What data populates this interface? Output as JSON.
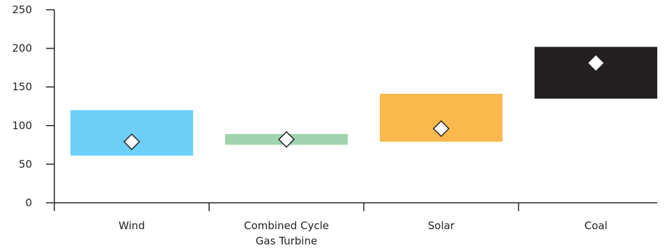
{
  "chart_data": {
    "type": "bar",
    "subtype": "floating-range-with-marker",
    "title": "",
    "xlabel": "",
    "ylabel": "",
    "ylim": [
      0,
      250
    ],
    "yticks": [
      0,
      50,
      100,
      150,
      200,
      250
    ],
    "grid": false,
    "legend": "none",
    "categories": [
      {
        "label_lines": [
          "Wind"
        ],
        "low": 61,
        "high": 120,
        "marker": 79,
        "color": "#6dcff6",
        "marker_style": "outlined"
      },
      {
        "label_lines": [
          "Combined Cycle",
          "Gas Turbine"
        ],
        "low": 75,
        "high": 89,
        "marker": 82,
        "color": "#9fd4ae",
        "marker_style": "outlined"
      },
      {
        "label_lines": [
          "Solar"
        ],
        "low": 79,
        "high": 141,
        "marker": 96,
        "color": "#fbb84c",
        "marker_style": "outlined"
      },
      {
        "label_lines": [
          "Coal"
        ],
        "low": 135,
        "high": 202,
        "marker": 181,
        "color": "#231f20",
        "marker_style": "filled"
      }
    ]
  }
}
